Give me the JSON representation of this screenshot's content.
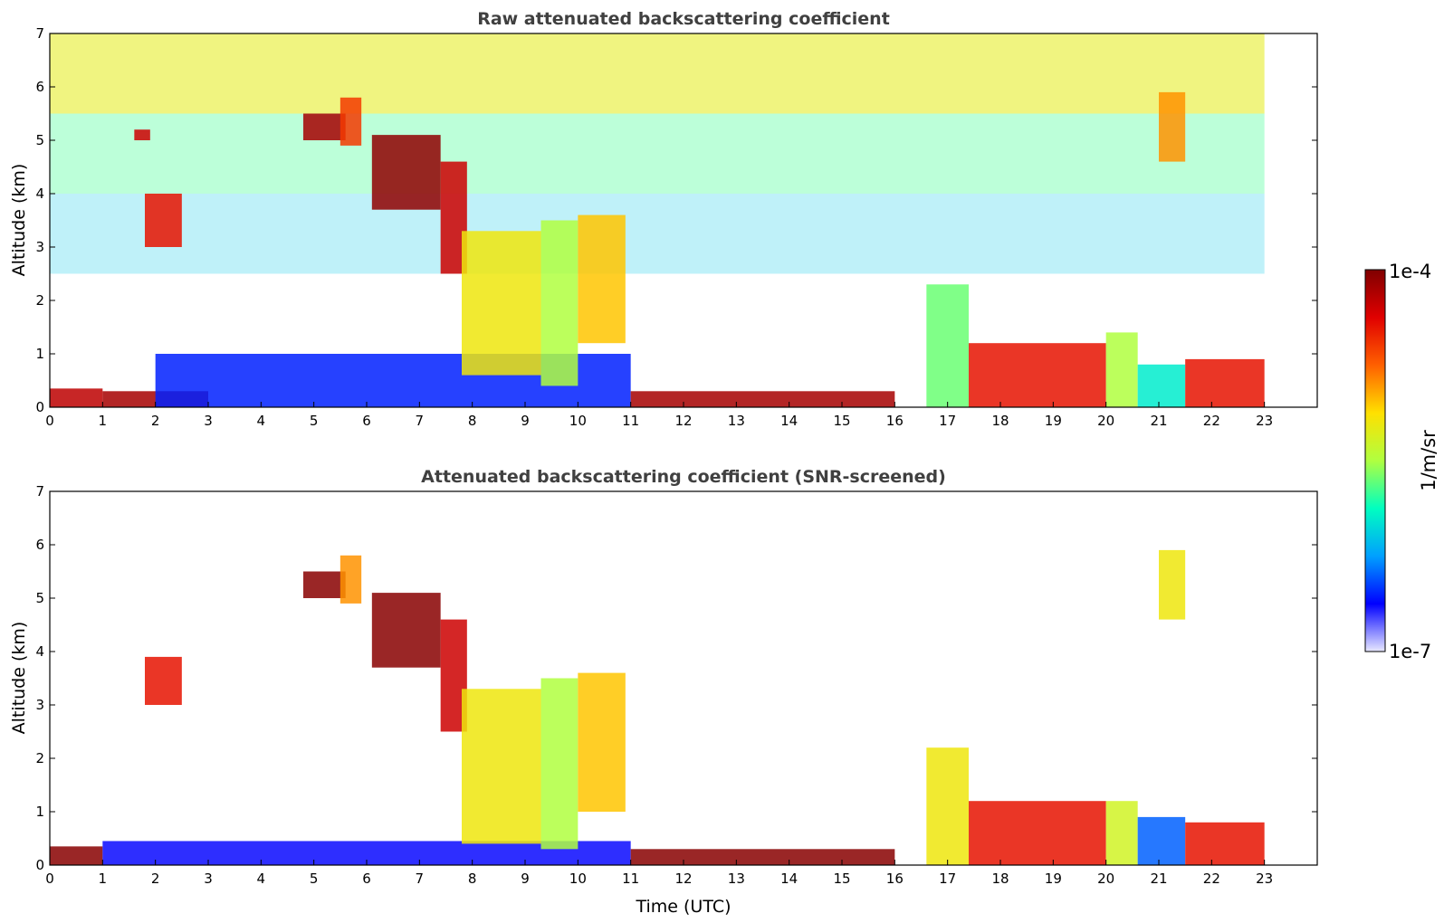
{
  "chart_data": [
    {
      "type": "heatmap",
      "title": "Raw attenuated backscattering coefficient",
      "ylabel": "Altitude (km)",
      "xlabel": "",
      "xlim": [
        0,
        24
      ],
      "ylim": [
        0,
        7
      ],
      "xticks": [
        "0",
        "1",
        "2",
        "3",
        "4",
        "5",
        "6",
        "7",
        "8",
        "9",
        "10",
        "11",
        "12",
        "13",
        "14",
        "15",
        "16",
        "17",
        "18",
        "19",
        "20",
        "21",
        "22",
        "23"
      ],
      "yticks": [
        "0",
        "1",
        "2",
        "3",
        "4",
        "5",
        "6",
        "7"
      ],
      "data_extent_hours": [
        0,
        23
      ],
      "features": [
        {
          "x0": 0.0,
          "x1": 1.0,
          "y0": 0.0,
          "y1": 0.35,
          "level": 0.92
        },
        {
          "x0": 1.0,
          "x1": 3.0,
          "y0": 0.0,
          "y1": 0.3,
          "level": 0.95
        },
        {
          "x0": 2.0,
          "x1": 11.0,
          "y0": 0.0,
          "y1": 1.0,
          "level": 0.15
        },
        {
          "x0": 1.6,
          "x1": 1.9,
          "y0": 5.0,
          "y1": 5.2,
          "level": 0.9
        },
        {
          "x0": 1.8,
          "x1": 2.5,
          "y0": 3.0,
          "y1": 4.0,
          "level": 0.85
        },
        {
          "x0": 4.8,
          "x1": 5.6,
          "y0": 5.0,
          "y1": 5.5,
          "level": 0.95
        },
        {
          "x0": 5.5,
          "x1": 5.9,
          "y0": 4.9,
          "y1": 5.8,
          "level": 0.8
        },
        {
          "x0": 6.1,
          "x1": 7.4,
          "y0": 3.7,
          "y1": 5.1,
          "level": 0.98
        },
        {
          "x0": 7.4,
          "x1": 7.9,
          "y0": 2.5,
          "y1": 4.6,
          "level": 0.9
        },
        {
          "x0": 7.8,
          "x1": 9.3,
          "y0": 0.6,
          "y1": 3.3,
          "level": 0.6
        },
        {
          "x0": 9.3,
          "x1": 10.0,
          "y0": 0.4,
          "y1": 3.5,
          "level": 0.5
        },
        {
          "x0": 10.0,
          "x1": 10.9,
          "y0": 1.2,
          "y1": 3.6,
          "level": 0.65
        },
        {
          "x0": 11.0,
          "x1": 16.0,
          "y0": 0.0,
          "y1": 0.3,
          "level": 0.95
        },
        {
          "x0": 16.6,
          "x1": 17.4,
          "y0": 0.0,
          "y1": 2.3,
          "level": 0.45
        },
        {
          "x0": 17.4,
          "x1": 20.0,
          "y0": 0.0,
          "y1": 1.2,
          "level": 0.85
        },
        {
          "x0": 20.0,
          "x1": 20.6,
          "y0": 0.0,
          "y1": 1.4,
          "level": 0.5
        },
        {
          "x0": 20.6,
          "x1": 21.5,
          "y0": 0.0,
          "y1": 0.8,
          "level": 0.35
        },
        {
          "x0": 21.5,
          "x1": 23.0,
          "y0": 0.0,
          "y1": 0.9,
          "level": 0.85
        },
        {
          "x0": 21.0,
          "x1": 21.5,
          "y0": 4.6,
          "y1": 5.9,
          "level": 0.7
        }
      ]
    },
    {
      "type": "heatmap",
      "title": "Attenuated backscattering coefficient (SNR-screened)",
      "ylabel": "Altitude (km)",
      "xlabel": "Time (UTC)",
      "xlim": [
        0,
        24
      ],
      "ylim": [
        0,
        7
      ],
      "xticks": [
        "0",
        "1",
        "2",
        "3",
        "4",
        "5",
        "6",
        "7",
        "8",
        "9",
        "10",
        "11",
        "12",
        "13",
        "14",
        "15",
        "16",
        "17",
        "18",
        "19",
        "20",
        "21",
        "22",
        "23"
      ],
      "yticks": [
        "0",
        "1",
        "2",
        "3",
        "4",
        "5",
        "6",
        "7"
      ],
      "data_extent_hours": [
        0,
        23
      ],
      "features": [
        {
          "x0": 0.0,
          "x1": 1.0,
          "y0": 0.0,
          "y1": 0.35,
          "level": 0.99
        },
        {
          "x0": 1.0,
          "x1": 11.0,
          "y0": 0.0,
          "y1": 0.45,
          "level": 0.12
        },
        {
          "x0": 1.8,
          "x1": 2.5,
          "y0": 3.0,
          "y1": 3.9,
          "level": 0.85
        },
        {
          "x0": 4.8,
          "x1": 5.6,
          "y0": 5.0,
          "y1": 5.5,
          "level": 0.99
        },
        {
          "x0": 5.5,
          "x1": 5.9,
          "y0": 4.9,
          "y1": 5.8,
          "level": 0.7
        },
        {
          "x0": 6.1,
          "x1": 7.4,
          "y0": 3.7,
          "y1": 5.1,
          "level": 0.99
        },
        {
          "x0": 7.4,
          "x1": 7.9,
          "y0": 2.5,
          "y1": 4.6,
          "level": 0.9
        },
        {
          "x0": 7.8,
          "x1": 9.3,
          "y0": 0.4,
          "y1": 3.3,
          "level": 0.6
        },
        {
          "x0": 9.3,
          "x1": 10.0,
          "y0": 0.3,
          "y1": 3.5,
          "level": 0.5
        },
        {
          "x0": 10.0,
          "x1": 10.9,
          "y0": 1.0,
          "y1": 3.6,
          "level": 0.65
        },
        {
          "x0": 11.0,
          "x1": 16.0,
          "y0": 0.0,
          "y1": 0.3,
          "level": 0.99
        },
        {
          "x0": 16.6,
          "x1": 17.4,
          "y0": 0.0,
          "y1": 2.2,
          "level": 0.6
        },
        {
          "x0": 17.4,
          "x1": 20.0,
          "y0": 0.0,
          "y1": 1.2,
          "level": 0.85
        },
        {
          "x0": 20.0,
          "x1": 20.6,
          "y0": 0.0,
          "y1": 1.2,
          "level": 0.55
        },
        {
          "x0": 20.6,
          "x1": 21.5,
          "y0": 0.0,
          "y1": 0.9,
          "level": 0.2
        },
        {
          "x0": 21.5,
          "x1": 23.0,
          "y0": 0.0,
          "y1": 0.8,
          "level": 0.85
        },
        {
          "x0": 21.0,
          "x1": 21.5,
          "y0": 4.6,
          "y1": 5.9,
          "level": 0.6
        }
      ]
    }
  ],
  "colorbar": {
    "label": "1/m/sr",
    "max_label": "1e-4",
    "min_label": "1e-7",
    "colormap": [
      "#e8e8ff",
      "#0000ff",
      "#00a0ff",
      "#00ffc0",
      "#b0ff40",
      "#ffe000",
      "#ff6000",
      "#e00000",
      "#800000"
    ]
  }
}
